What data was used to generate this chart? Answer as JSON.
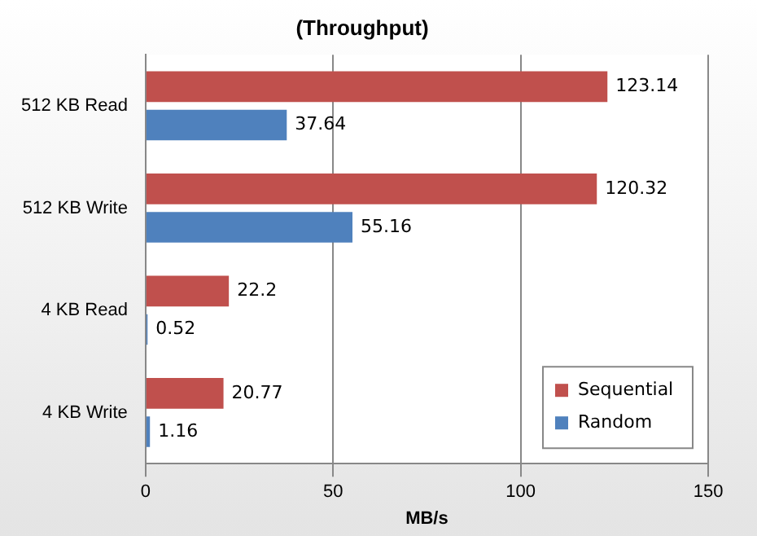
{
  "chart_data": {
    "type": "bar",
    "orientation": "horizontal",
    "title": "(Throughput)",
    "xlabel": "MB/s",
    "categories": [
      "512 KB Read",
      "512 KB Write",
      "4 KB Read",
      "4 KB Write"
    ],
    "series": [
      {
        "name": "Sequential",
        "color": "#c0504d",
        "values": [
          123.14,
          120.32,
          22.2,
          20.77
        ]
      },
      {
        "name": "Random",
        "color": "#4f81bd",
        "values": [
          37.64,
          55.16,
          0.52,
          1.16
        ]
      }
    ],
    "xlim": [
      0,
      150
    ],
    "xticks": [
      0,
      50,
      100,
      150
    ],
    "grid": "x",
    "legend": "bottom right",
    "data_labels": true
  }
}
